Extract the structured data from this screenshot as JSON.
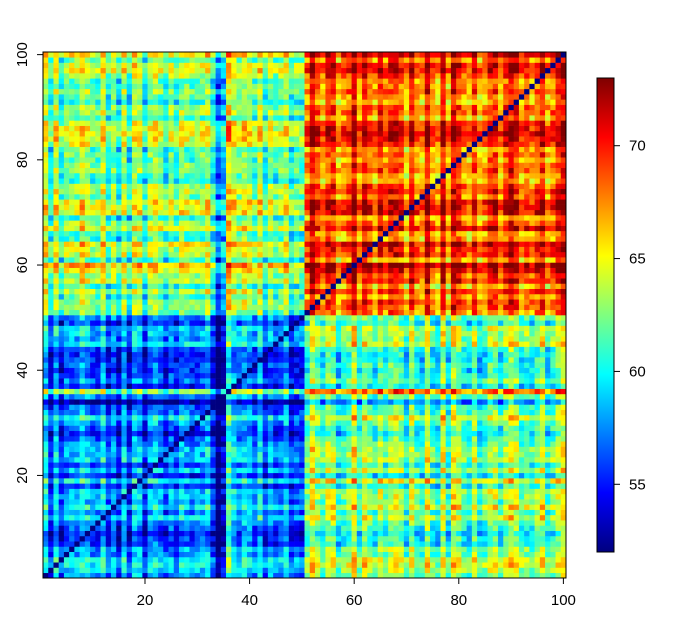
{
  "chart_data": {
    "type": "heatmap",
    "title": "",
    "xlabel": "",
    "ylabel": "",
    "xlim": [
      1,
      100
    ],
    "ylim": [
      1,
      100
    ],
    "x_ticks": [
      20,
      40,
      60,
      80,
      100
    ],
    "y_ticks": [
      20,
      40,
      60,
      80,
      100
    ],
    "grid": false,
    "n_rows": 100,
    "n_cols": 100,
    "diagonal_value": 52,
    "block_structure": {
      "low_block_indices": [
        1,
        50
      ],
      "high_block_indices": [
        51,
        100
      ],
      "low_block_mean": 57,
      "high_block_mean": 69,
      "cross_block_mean": 62.5
    },
    "colorbar": {
      "min": 52,
      "max": 73,
      "ticks": [
        55,
        60,
        65,
        70
      ],
      "colors": [
        "#00007F",
        "#0000FF",
        "#007FFF",
        "#00FFFF",
        "#7FFF7F",
        "#FFFF00",
        "#FF7F00",
        "#FF0000",
        "#7F0000"
      ]
    }
  }
}
